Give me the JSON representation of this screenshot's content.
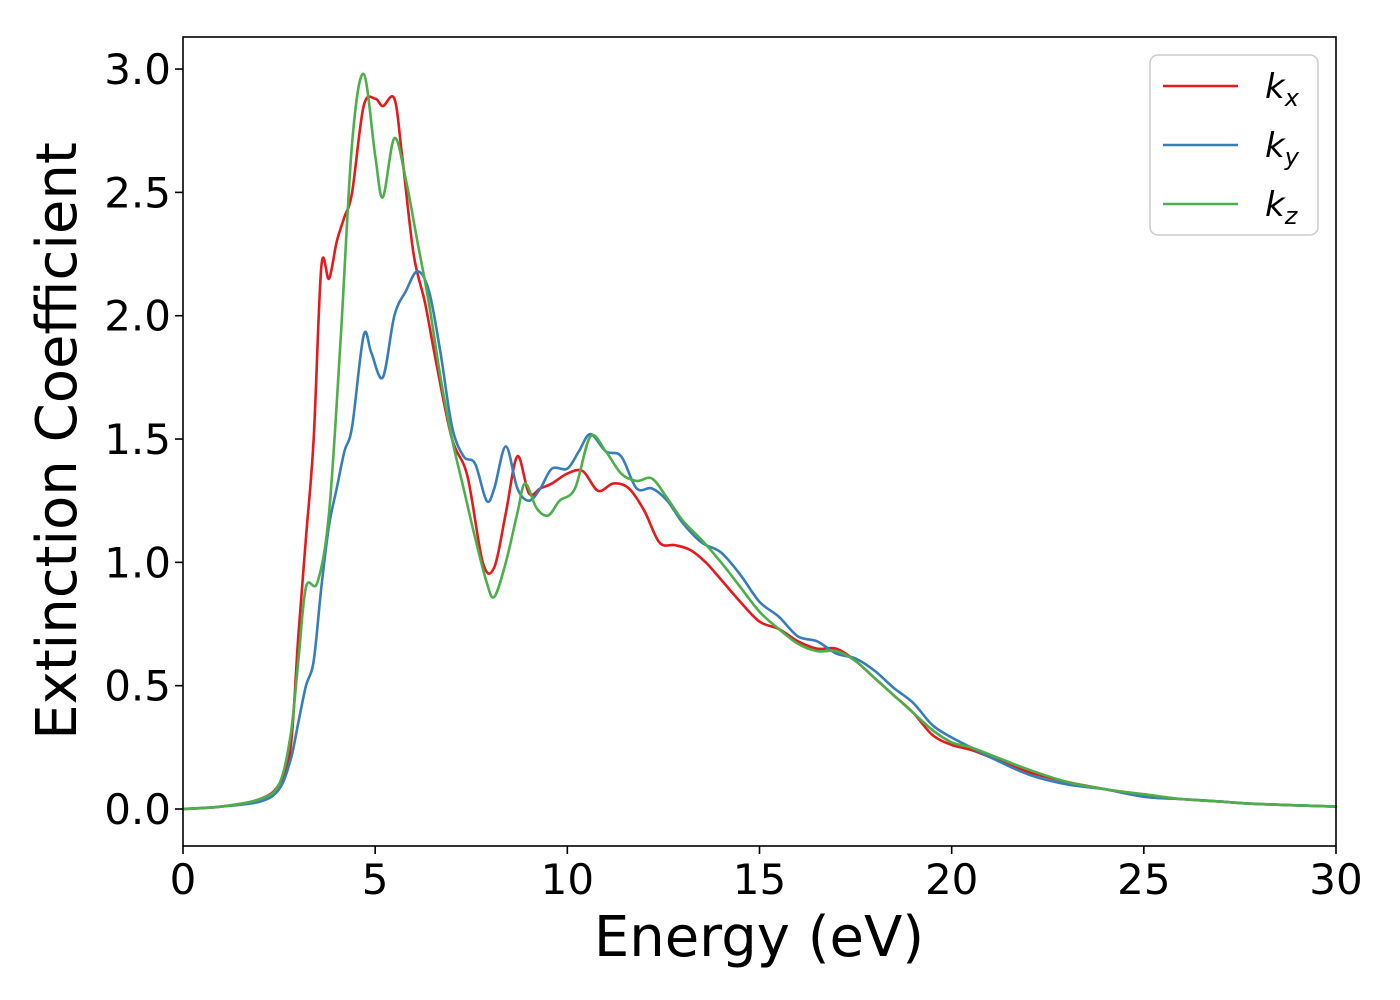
{
  "chart_data": {
    "type": "line",
    "xlabel": "Energy (eV)",
    "ylabel": "Extinction Coefficient",
    "xlim": [
      0,
      30
    ],
    "ylim": [
      -0.15,
      3.13
    ],
    "xticks": [
      0,
      5,
      10,
      15,
      20,
      25,
      30
    ],
    "xtick_labels": [
      "0",
      "5",
      "10",
      "15",
      "20",
      "25",
      "30"
    ],
    "yticks": [
      0.0,
      0.5,
      1.0,
      1.5,
      2.0,
      2.5,
      3.0
    ],
    "ytick_labels": [
      "0.0",
      "0.5",
      "1.0",
      "1.5",
      "2.0",
      "2.5",
      "3.0"
    ],
    "grid": false,
    "legend_position": "top-right",
    "series": [
      {
        "name": "k_x",
        "label_main": "k",
        "label_sub": "x",
        "color": "#e41a1c",
        "points": [
          [
            0,
            0
          ],
          [
            1,
            0.01
          ],
          [
            2,
            0.04
          ],
          [
            2.5,
            0.1
          ],
          [
            2.8,
            0.25
          ],
          [
            3.0,
            0.7
          ],
          [
            3.2,
            1.1
          ],
          [
            3.4,
            1.5
          ],
          [
            3.6,
            2.2
          ],
          [
            3.8,
            2.15
          ],
          [
            4.0,
            2.3
          ],
          [
            4.2,
            2.4
          ],
          [
            4.4,
            2.5
          ],
          [
            4.7,
            2.85
          ],
          [
            5.0,
            2.88
          ],
          [
            5.2,
            2.85
          ],
          [
            5.5,
            2.88
          ],
          [
            5.7,
            2.65
          ],
          [
            6.0,
            2.25
          ],
          [
            6.3,
            2.05
          ],
          [
            6.6,
            1.8
          ],
          [
            7.0,
            1.5
          ],
          [
            7.4,
            1.35
          ],
          [
            7.8,
            1.0
          ],
          [
            8.1,
            0.98
          ],
          [
            8.4,
            1.2
          ],
          [
            8.7,
            1.43
          ],
          [
            9.0,
            1.28
          ],
          [
            9.3,
            1.3
          ],
          [
            9.6,
            1.32
          ],
          [
            10.0,
            1.36
          ],
          [
            10.4,
            1.37
          ],
          [
            10.8,
            1.29
          ],
          [
            11.2,
            1.32
          ],
          [
            11.6,
            1.3
          ],
          [
            12.0,
            1.21
          ],
          [
            12.4,
            1.08
          ],
          [
            12.8,
            1.07
          ],
          [
            13.2,
            1.05
          ],
          [
            13.6,
            1.0
          ],
          [
            14.0,
            0.93
          ],
          [
            14.5,
            0.84
          ],
          [
            15.0,
            0.76
          ],
          [
            15.5,
            0.73
          ],
          [
            16.0,
            0.68
          ],
          [
            16.5,
            0.65
          ],
          [
            17.0,
            0.65
          ],
          [
            17.5,
            0.6
          ],
          [
            18.0,
            0.53
          ],
          [
            18.5,
            0.46
          ],
          [
            19.0,
            0.39
          ],
          [
            19.5,
            0.3
          ],
          [
            20.0,
            0.26
          ],
          [
            20.5,
            0.24
          ],
          [
            21.0,
            0.21
          ],
          [
            22.0,
            0.15
          ],
          [
            23.0,
            0.11
          ],
          [
            24.0,
            0.08
          ],
          [
            25.0,
            0.05
          ],
          [
            26.0,
            0.04
          ],
          [
            27.0,
            0.03
          ],
          [
            28.0,
            0.02
          ],
          [
            30.0,
            0.01
          ]
        ]
      },
      {
        "name": "k_y",
        "label_main": "k",
        "label_sub": "y",
        "color": "#377eb8",
        "points": [
          [
            0,
            0
          ],
          [
            1,
            0.01
          ],
          [
            2,
            0.03
          ],
          [
            2.5,
            0.08
          ],
          [
            2.8,
            0.2
          ],
          [
            3.0,
            0.35
          ],
          [
            3.2,
            0.5
          ],
          [
            3.4,
            0.6
          ],
          [
            3.6,
            0.9
          ],
          [
            3.8,
            1.15
          ],
          [
            4.0,
            1.3
          ],
          [
            4.2,
            1.45
          ],
          [
            4.4,
            1.55
          ],
          [
            4.7,
            1.92
          ],
          [
            4.9,
            1.85
          ],
          [
            5.2,
            1.75
          ],
          [
            5.5,
            2.0
          ],
          [
            5.8,
            2.1
          ],
          [
            6.1,
            2.18
          ],
          [
            6.4,
            2.1
          ],
          [
            6.7,
            1.85
          ],
          [
            7.0,
            1.55
          ],
          [
            7.3,
            1.43
          ],
          [
            7.6,
            1.4
          ],
          [
            7.9,
            1.25
          ],
          [
            8.1,
            1.3
          ],
          [
            8.4,
            1.47
          ],
          [
            8.7,
            1.3
          ],
          [
            9.0,
            1.25
          ],
          [
            9.3,
            1.3
          ],
          [
            9.6,
            1.38
          ],
          [
            10.0,
            1.38
          ],
          [
            10.3,
            1.45
          ],
          [
            10.6,
            1.52
          ],
          [
            11.0,
            1.45
          ],
          [
            11.4,
            1.43
          ],
          [
            11.8,
            1.3
          ],
          [
            12.2,
            1.3
          ],
          [
            12.6,
            1.25
          ],
          [
            13.0,
            1.16
          ],
          [
            13.5,
            1.08
          ],
          [
            14.0,
            1.04
          ],
          [
            14.5,
            0.95
          ],
          [
            15.0,
            0.84
          ],
          [
            15.5,
            0.78
          ],
          [
            16.0,
            0.7
          ],
          [
            16.5,
            0.68
          ],
          [
            17.0,
            0.63
          ],
          [
            17.5,
            0.61
          ],
          [
            18.0,
            0.56
          ],
          [
            18.5,
            0.49
          ],
          [
            19.0,
            0.43
          ],
          [
            19.5,
            0.34
          ],
          [
            20.0,
            0.29
          ],
          [
            20.5,
            0.25
          ],
          [
            21.0,
            0.21
          ],
          [
            22.0,
            0.14
          ],
          [
            23.0,
            0.1
          ],
          [
            24.0,
            0.08
          ],
          [
            25.0,
            0.05
          ],
          [
            26.0,
            0.04
          ],
          [
            27.0,
            0.03
          ],
          [
            28.0,
            0.02
          ],
          [
            30.0,
            0.01
          ]
        ]
      },
      {
        "name": "k_z",
        "label_main": "k",
        "label_sub": "z",
        "color": "#4daf4a",
        "points": [
          [
            0,
            0
          ],
          [
            1,
            0.01
          ],
          [
            2,
            0.04
          ],
          [
            2.5,
            0.1
          ],
          [
            2.8,
            0.3
          ],
          [
            3.0,
            0.6
          ],
          [
            3.2,
            0.9
          ],
          [
            3.5,
            0.92
          ],
          [
            3.8,
            1.2
          ],
          [
            4.1,
            1.9
          ],
          [
            4.4,
            2.7
          ],
          [
            4.7,
            2.98
          ],
          [
            5.0,
            2.65
          ],
          [
            5.2,
            2.48
          ],
          [
            5.5,
            2.72
          ],
          [
            5.8,
            2.55
          ],
          [
            6.1,
            2.3
          ],
          [
            6.4,
            2.05
          ],
          [
            6.7,
            1.75
          ],
          [
            7.0,
            1.5
          ],
          [
            7.3,
            1.3
          ],
          [
            7.6,
            1.1
          ],
          [
            7.9,
            0.92
          ],
          [
            8.1,
            0.86
          ],
          [
            8.4,
            1.0
          ],
          [
            8.7,
            1.2
          ],
          [
            8.9,
            1.32
          ],
          [
            9.2,
            1.22
          ],
          [
            9.5,
            1.19
          ],
          [
            9.8,
            1.25
          ],
          [
            10.2,
            1.3
          ],
          [
            10.6,
            1.51
          ],
          [
            11.0,
            1.45
          ],
          [
            11.4,
            1.36
          ],
          [
            11.8,
            1.33
          ],
          [
            12.2,
            1.34
          ],
          [
            12.6,
            1.26
          ],
          [
            13.0,
            1.17
          ],
          [
            13.5,
            1.09
          ],
          [
            14.0,
            1.0
          ],
          [
            14.5,
            0.9
          ],
          [
            15.0,
            0.8
          ],
          [
            15.5,
            0.73
          ],
          [
            16.0,
            0.67
          ],
          [
            16.5,
            0.64
          ],
          [
            17.0,
            0.64
          ],
          [
            17.5,
            0.6
          ],
          [
            18.0,
            0.53
          ],
          [
            18.5,
            0.46
          ],
          [
            19.0,
            0.39
          ],
          [
            19.5,
            0.32
          ],
          [
            20.0,
            0.27
          ],
          [
            20.5,
            0.25
          ],
          [
            21.0,
            0.22
          ],
          [
            22.0,
            0.16
          ],
          [
            23.0,
            0.11
          ],
          [
            24.0,
            0.08
          ],
          [
            25.0,
            0.06
          ],
          [
            26.0,
            0.04
          ],
          [
            27.0,
            0.03
          ],
          [
            28.0,
            0.02
          ],
          [
            30.0,
            0.01
          ]
        ]
      }
    ]
  }
}
